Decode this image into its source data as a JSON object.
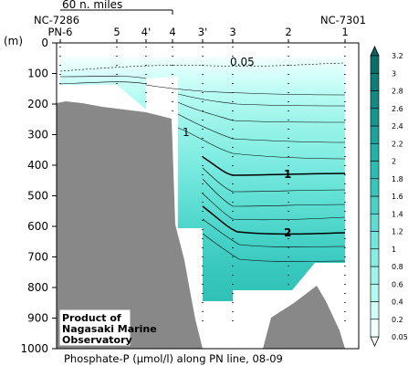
{
  "chart_data": {
    "type": "heatmap",
    "title": "Phosphate-P (µmol/l) along PN line, 08-09",
    "ylabel": "(m)",
    "ylim": [
      1000,
      0
    ],
    "yticks": [
      0,
      100,
      200,
      300,
      400,
      500,
      600,
      700,
      800,
      900,
      1000
    ],
    "scale_bar_label": "60 n. miles",
    "end_labels": {
      "left": "NC-7286",
      "right": "NC-7301"
    },
    "stations": [
      "PN-6",
      "5",
      "4'",
      "4",
      "3'",
      "3",
      "2",
      "1"
    ],
    "colorbar": {
      "levels": [
        0.05,
        0.2,
        0.4,
        0.6,
        0.8,
        1,
        1.2,
        1.4,
        1.6,
        1.8,
        2,
        2.2,
        2.4,
        2.6,
        2.8,
        3,
        3.2
      ],
      "colors": [
        "#eefffd",
        "#cffff8",
        "#b2fbf0",
        "#9ef4ea",
        "#88eee3",
        "#72e6dd",
        "#5edcd2",
        "#4ad2c8",
        "#38c7bd",
        "#2bbcb3",
        "#22b0a7",
        "#1ca39a",
        "#17968d",
        "#128a81",
        "#0d7d75",
        "#097068"
      ]
    },
    "contour_labels": [
      "0.05",
      "1",
      "2",
      "1"
    ],
    "bathymetry_color": "#888888"
  },
  "credit": [
    "Product of",
    "Nagasaki Marine",
    "Observatory"
  ],
  "caption": "Phosphate-P (µmol/l) along PN line, 08-09"
}
